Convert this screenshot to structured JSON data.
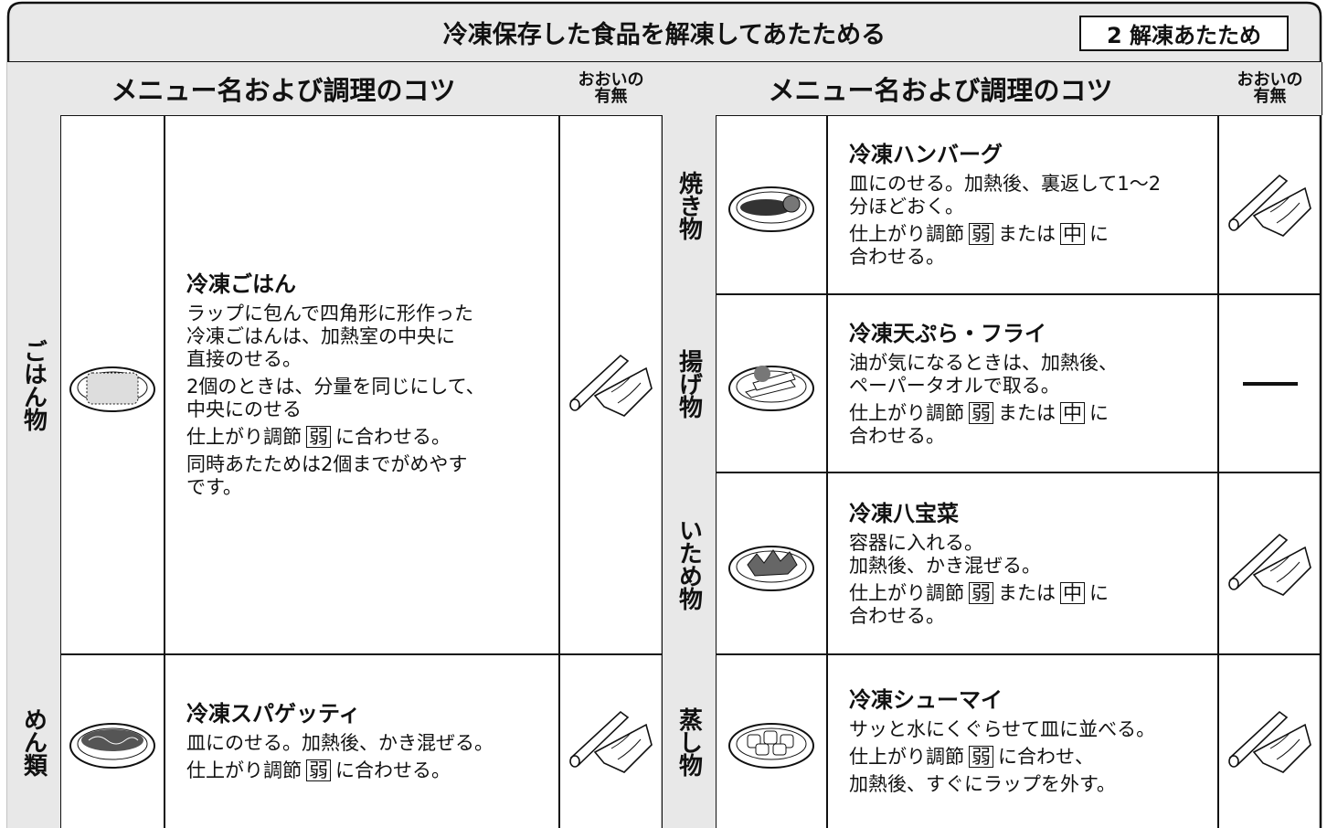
{
  "header": {
    "title": "冷凍保存した食品を解凍してあたためる",
    "badge": "2 解凍あたため"
  },
  "sections": [
    {
      "menu_header": "メニュー名および調理のコツ",
      "cover_header": [
        "おおいの",
        "有無"
      ],
      "rows": [
        {
          "category": "ごはん物",
          "name": "冷凍ごはん",
          "cover": true,
          "paragraphs": [
            [
              "ラップに包んで四角形に形作った",
              "冷凍ごはんは、加熱室の中央に",
              "直接のせる。"
            ],
            [
              "2個のときは、分量を同じにして、",
              "中央にのせる"
            ],
            [
              [
                "仕上がり調節",
                {
                  "boxed": "弱"
                },
                "に合わせる。"
              ]
            ],
            [
              "同時あたためは2個までがめやす",
              "です。"
            ]
          ]
        },
        {
          "category": "めん類",
          "name": "冷凍スパゲッティ",
          "cover": true,
          "paragraphs": [
            [
              "皿にのせる。加熱後、かき混ぜる。"
            ],
            [
              [
                "仕上がり調節",
                {
                  "boxed": "弱"
                },
                "に合わせる。"
              ]
            ]
          ]
        }
      ]
    },
    {
      "menu_header": "メニュー名および調理のコツ",
      "cover_header": [
        "おおいの",
        "有無"
      ],
      "rows": [
        {
          "category": "焼き物",
          "name": "冷凍ハンバーグ",
          "cover": true,
          "paragraphs": [
            [
              "皿にのせる。加熱後、裏返して1～2",
              "分ほどおく。"
            ],
            [
              [
                "仕上がり調節",
                {
                  "boxed": "弱"
                },
                "または",
                {
                  "boxed": "中"
                },
                "に"
              ],
              "合わせる。"
            ]
          ]
        },
        {
          "category": "揚げ物",
          "name": "冷凍天ぷら・フライ",
          "cover": false,
          "paragraphs": [
            [
              "油が気になるときは、加熱後、",
              "ペーパータオルで取る。"
            ],
            [
              [
                "仕上がり調節",
                {
                  "boxed": "弱"
                },
                "または",
                {
                  "boxed": "中"
                },
                "に"
              ],
              "合わせる。"
            ]
          ]
        },
        {
          "category": "いため物",
          "name": "冷凍八宝菜",
          "cover": true,
          "paragraphs": [
            [
              "容器に入れる。",
              "加熱後、かき混ぜる。"
            ],
            [
              [
                "仕上がり調節",
                {
                  "boxed": "弱"
                },
                "または",
                {
                  "boxed": "中"
                },
                "に"
              ],
              "合わせる。"
            ]
          ]
        },
        {
          "category": "蒸し物",
          "name": "冷凍シューマイ",
          "cover": true,
          "paragraphs": [
            [
              "サッと水にくぐらせて皿に並べる。"
            ],
            [
              [
                "仕上がり調節",
                {
                  "boxed": "弱"
                },
                "に合わせ、"
              ]
            ],
            [
              "加熱後、すぐにラップを外す。"
            ]
          ]
        }
      ]
    }
  ]
}
